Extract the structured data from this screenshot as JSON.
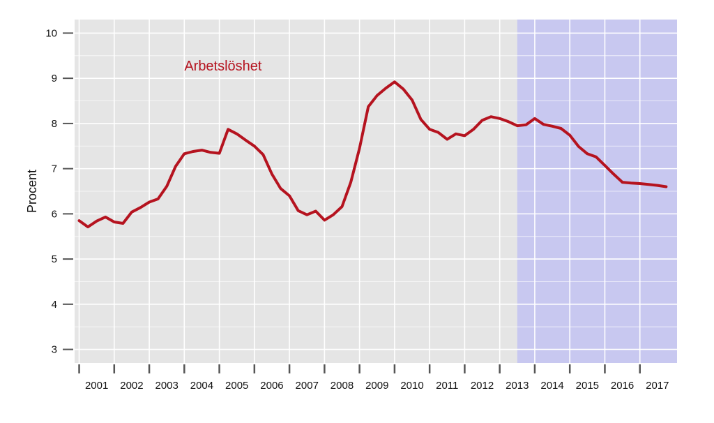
{
  "chart_data": {
    "type": "line",
    "title": "",
    "xlabel": "",
    "ylabel": "Procent",
    "ylim": [
      2.7,
      10.3
    ],
    "xlim": [
      2000.87,
      2018.06
    ],
    "y_ticks": [
      3,
      4,
      5,
      6,
      7,
      8,
      9,
      10
    ],
    "x_ticks": [
      2001,
      2002,
      2003,
      2004,
      2005,
      2006,
      2007,
      2008,
      2009,
      2010,
      2011,
      2012,
      2013,
      2014,
      2015,
      2016,
      2017
    ],
    "x_tick_labels": [
      "2001",
      "2002",
      "2003",
      "2004",
      "2005",
      "2006",
      "2007",
      "2008",
      "2009",
      "2010",
      "2011",
      "2012",
      "2013",
      "2014",
      "2015",
      "2016",
      "2017"
    ],
    "grid": true,
    "forecast_shading": {
      "from": 2013.5,
      "to": 2018.06,
      "color": "#c8c8f0"
    },
    "colors": {
      "background": "#e5e5e5",
      "grid": "#ffffff",
      "line": "#b5131f",
      "label": "#b5131f"
    },
    "series": [
      {
        "name": "Arbetslöshet",
        "label_position": [
          2004.0,
          9.17
        ],
        "x": [
          2001.0,
          2001.25,
          2001.5,
          2001.75,
          2002.0,
          2002.25,
          2002.5,
          2002.75,
          2003.0,
          2003.25,
          2003.5,
          2003.75,
          2004.0,
          2004.25,
          2004.5,
          2004.75,
          2005.0,
          2005.25,
          2005.5,
          2005.75,
          2006.0,
          2006.25,
          2006.5,
          2006.75,
          2007.0,
          2007.25,
          2007.5,
          2007.75,
          2008.0,
          2008.25,
          2008.5,
          2008.75,
          2009.0,
          2009.25,
          2009.5,
          2009.75,
          2010.0,
          2010.25,
          2010.5,
          2010.75,
          2011.0,
          2011.25,
          2011.5,
          2011.75,
          2012.0,
          2012.25,
          2012.5,
          2012.75,
          2013.0,
          2013.25,
          2013.5,
          2013.75,
          2014.0,
          2014.25,
          2014.5,
          2014.75,
          2015.0,
          2015.25,
          2015.5,
          2015.75,
          2016.0,
          2016.25,
          2016.5,
          2016.75,
          2017.0,
          2017.25,
          2017.5,
          2017.75
        ],
        "values": [
          5.85,
          5.71,
          5.84,
          5.93,
          5.82,
          5.79,
          6.04,
          6.14,
          6.26,
          6.33,
          6.61,
          7.05,
          7.33,
          7.38,
          7.41,
          7.36,
          7.34,
          7.87,
          7.77,
          7.63,
          7.5,
          7.31,
          6.88,
          6.56,
          6.4,
          6.07,
          5.98,
          6.06,
          5.86,
          5.98,
          6.16,
          6.7,
          7.45,
          8.37,
          8.62,
          8.78,
          8.92,
          8.76,
          8.52,
          8.09,
          7.87,
          7.8,
          7.65,
          7.77,
          7.73,
          7.87,
          8.07,
          8.15,
          8.11,
          8.04,
          7.95,
          7.97,
          8.11,
          7.98,
          7.94,
          7.89,
          7.74,
          7.49,
          7.33,
          7.26,
          7.07,
          6.88,
          6.7,
          6.68,
          6.67,
          6.65,
          6.63,
          6.6
        ]
      }
    ]
  }
}
